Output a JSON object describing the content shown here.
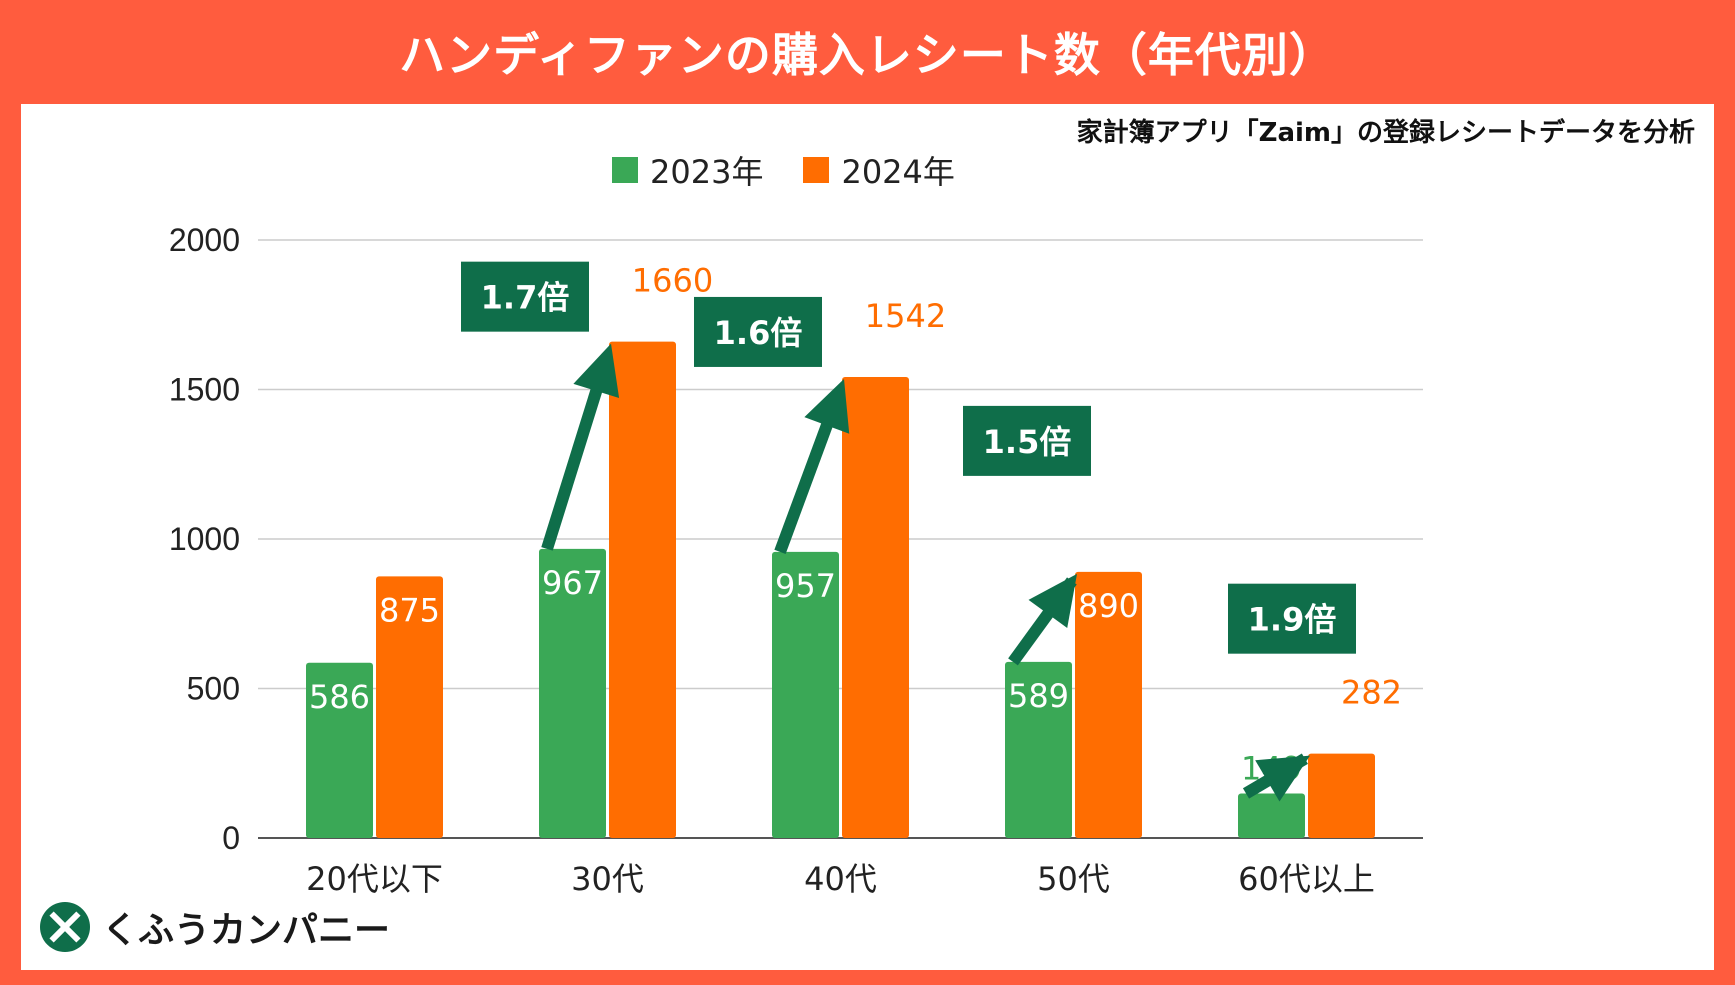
{
  "title": "ハンディファンの購入レシート数（年代別）",
  "source_note": "家計簿アプリ「Zaim」の登録レシートデータを分析",
  "brand": "くふうカンパニー",
  "colors": {
    "frame": "#ff5c3e",
    "series_2023": "#3aa856",
    "series_2024": "#ff6d01",
    "ratio_box": "#0f6e4a",
    "gridline": "#cccccc"
  },
  "chart_data": {
    "type": "bar",
    "categories": [
      "20代以下",
      "30代",
      "40代",
      "50代",
      "60代以上"
    ],
    "series": [
      {
        "name": "2023年",
        "values": [
          586,
          967,
          957,
          589,
          149
        ]
      },
      {
        "name": "2024年",
        "values": [
          875,
          1660,
          1542,
          890,
          282
        ]
      }
    ],
    "yticks": [
      0,
      500,
      1000,
      1500,
      2000
    ],
    "ylim": [
      0,
      2000
    ],
    "legend_position": "top-center",
    "annotations": [
      {
        "category": "30代",
        "label": "1.7倍"
      },
      {
        "category": "40代",
        "label": "1.6倍"
      },
      {
        "category": "50代",
        "label": "1.5倍"
      },
      {
        "category": "60代以上",
        "label": "1.9倍"
      }
    ]
  }
}
